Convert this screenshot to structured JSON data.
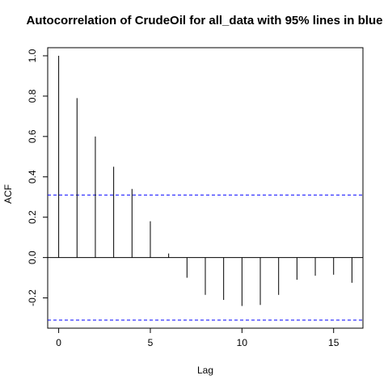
{
  "chart_data": {
    "type": "bar",
    "title": "Autocorrelation of CrudeOil for all_data  with 95% lines in blue",
    "xlabel": "Lag",
    "ylabel": "ACF",
    "xlim": [
      -0.6,
      16.6
    ],
    "ylim": [
      -0.35,
      1.04
    ],
    "x_ticks": [
      0,
      5,
      10,
      15
    ],
    "y_ticks": [
      -0.2,
      0.0,
      0.2,
      0.4,
      0.6,
      0.8,
      1.0
    ],
    "y_tick_labels": [
      "-0.2",
      "0.0",
      "0.2",
      "0.4",
      "0.6",
      "0.8",
      "1.0"
    ],
    "lags": [
      0,
      1,
      2,
      3,
      4,
      5,
      6,
      7,
      8,
      9,
      10,
      11,
      12,
      13,
      14,
      15,
      16
    ],
    "values": [
      1.0,
      0.79,
      0.6,
      0.45,
      0.34,
      0.18,
      0.02,
      -0.1,
      -0.185,
      -0.21,
      -0.24,
      -0.235,
      -0.185,
      -0.11,
      -0.09,
      -0.085,
      -0.125
    ],
    "confidence_bounds": [
      0.31,
      -0.31
    ],
    "zero_line": 0,
    "grid": false,
    "colors": {
      "bars": "#000000",
      "bounds": "#0000ff"
    }
  }
}
